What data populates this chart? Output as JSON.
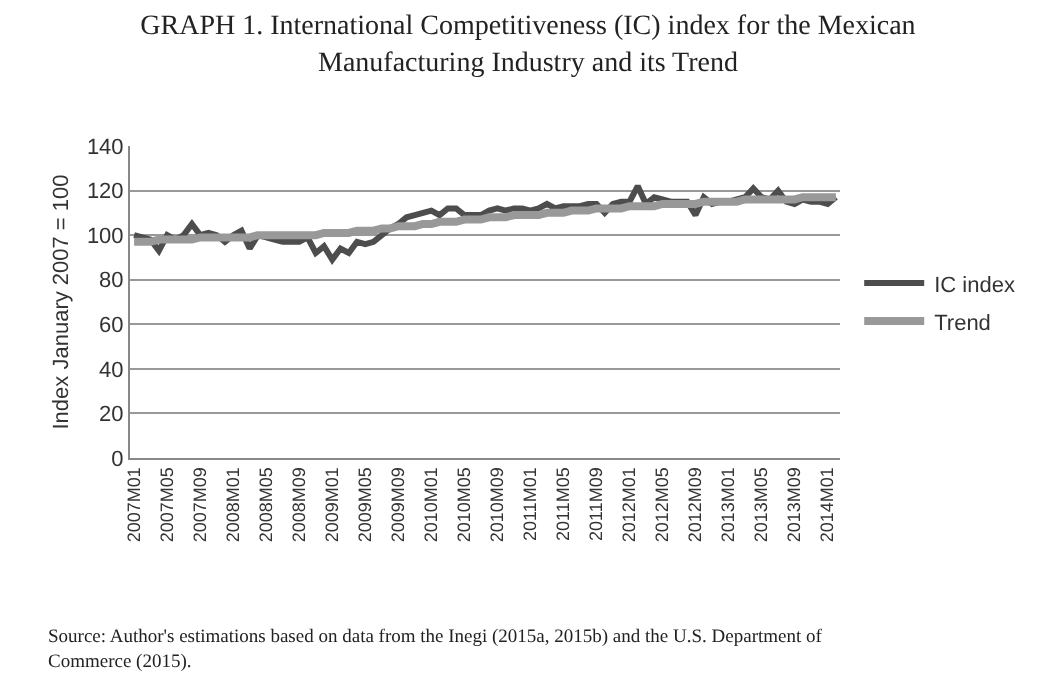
{
  "chart_data": {
    "type": "line",
    "title": "GRAPH 1. International Competitiveness (IC) index for the Mexican\nManufacturing Industry and its Trend",
    "ylabel": "Index January 2007 = 100",
    "categories": [
      "2007M01",
      null,
      null,
      null,
      "2007M05",
      null,
      null,
      null,
      "2007M09",
      null,
      null,
      null,
      "2008M01",
      null,
      null,
      null,
      "2008M05",
      null,
      null,
      null,
      "2008M09",
      null,
      null,
      null,
      "2009M01",
      null,
      null,
      null,
      "2009M05",
      null,
      null,
      null,
      "2009M09",
      null,
      null,
      null,
      "2010M01",
      null,
      null,
      null,
      "2010M05",
      null,
      null,
      null,
      "2010M09",
      null,
      null,
      null,
      "2011M01",
      null,
      null,
      null,
      "2011M05",
      null,
      null,
      null,
      "2011M09",
      null,
      null,
      null,
      "2012M01",
      null,
      null,
      null,
      "2012M05",
      null,
      null,
      null,
      "2012M09",
      null,
      null,
      null,
      "2013M01",
      null,
      null,
      null,
      "2013M05",
      null,
      null,
      null,
      "2013M09",
      null,
      null,
      null,
      "2014M01",
      null
    ],
    "series": [
      {
        "name": "IC index",
        "color": "#4d4d4d",
        "values": [
          100,
          99,
          98,
          93,
          100,
          98,
          100,
          105,
          100,
          101,
          100,
          97,
          100,
          102,
          94,
          100,
          99,
          98,
          97,
          97,
          97,
          99,
          92,
          95,
          89,
          94,
          92,
          97,
          96,
          97,
          100,
          103,
          105,
          108,
          109,
          110,
          111,
          109,
          112,
          112,
          109,
          109,
          109,
          111,
          112,
          111,
          112,
          112,
          111,
          112,
          114,
          112,
          113,
          113,
          113,
          114,
          114,
          110,
          114,
          115,
          115,
          122,
          114,
          117,
          116,
          115,
          115,
          115,
          109,
          117,
          114,
          115,
          115,
          116,
          117,
          121,
          117,
          116,
          120,
          115,
          114,
          116,
          115,
          115,
          114,
          117
        ]
      },
      {
        "name": "Trend",
        "color": "#999999",
        "values": [
          97,
          97,
          97,
          98,
          98,
          98,
          98,
          98,
          99,
          99,
          99,
          99,
          99,
          99,
          99,
          100,
          100,
          100,
          100,
          100,
          100,
          100,
          100,
          101,
          101,
          101,
          101,
          102,
          102,
          102,
          103,
          103,
          104,
          104,
          104,
          105,
          105,
          106,
          106,
          106,
          107,
          107,
          107,
          108,
          108,
          108,
          109,
          109,
          109,
          109,
          110,
          110,
          110,
          111,
          111,
          111,
          112,
          112,
          112,
          112,
          113,
          113,
          113,
          113,
          114,
          114,
          114,
          114,
          114,
          115,
          115,
          115,
          115,
          115,
          116,
          116,
          116,
          116,
          116,
          116,
          116,
          117,
          117,
          117,
          117,
          117
        ]
      }
    ],
    "ylim": [
      0,
      140
    ],
    "yticks": [
      0,
      20,
      40,
      60,
      80,
      100,
      120,
      140
    ],
    "grid": "y",
    "legend": "right",
    "marker": "none",
    "line_style": "solid",
    "annotations": [
      "Source: Author's estimations based on data from the Inegi (2015a, 2015b) and the U.S. Department of\nCommerce (2015)."
    ]
  }
}
